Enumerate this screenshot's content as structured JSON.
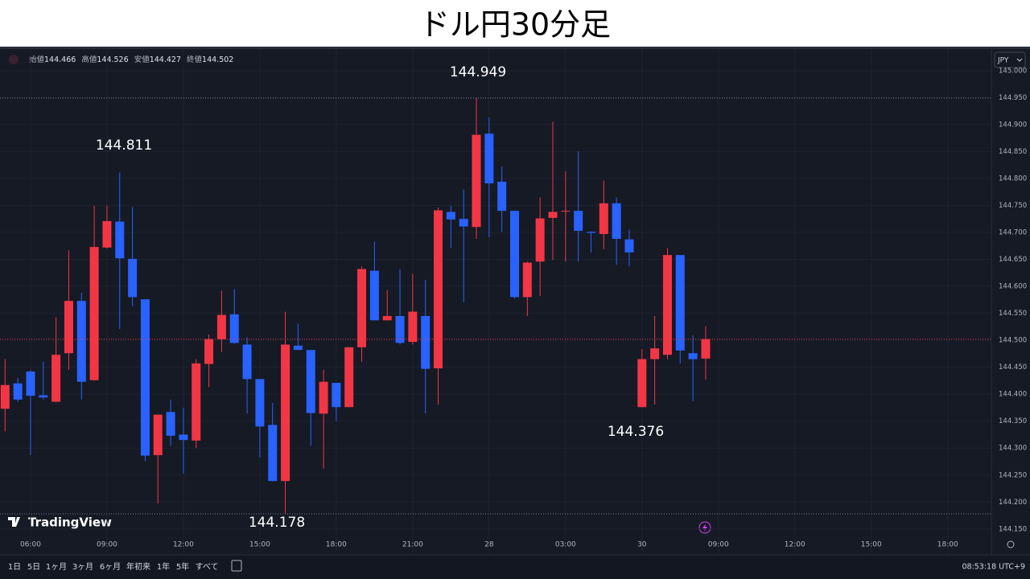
{
  "chart_data": {
    "type": "candlestick",
    "title": "ドル円30分足",
    "header": [
      {
        "label": "始値",
        "value": "144.466"
      },
      {
        "label": "高値",
        "value": "144.526"
      },
      {
        "label": "安値",
        "value": "144.427"
      },
      {
        "label": "終値",
        "value": "144.502"
      }
    ],
    "currency": "JPY",
    "brand": "TradingView",
    "annotations": [
      "144.949",
      "144.811",
      "144.376",
      "144.178"
    ],
    "categories": [
      null,
      null,
      "06:00",
      null,
      null,
      null,
      null,
      null,
      "09:00",
      null,
      null,
      null,
      null,
      null,
      "12:00",
      null,
      null,
      null,
      null,
      null,
      "15:00",
      null,
      null,
      null,
      null,
      null,
      "18:00",
      null,
      null,
      null,
      null,
      null,
      "21:00",
      null,
      null,
      null,
      null,
      null,
      "28",
      null,
      null,
      null,
      null,
      null,
      "03:00",
      null,
      null,
      null,
      null,
      null,
      "30",
      null,
      null,
      null,
      null,
      null,
      "09:00",
      null,
      null,
      null,
      null,
      null,
      "12:00",
      null,
      null,
      null,
      null,
      null,
      "15:00",
      null,
      null,
      null,
      null,
      null,
      "18:00",
      null,
      null,
      null
    ],
    "open": [
      144.373,
      144.42,
      144.442,
      144.398,
      144.386,
      144.476,
      144.573,
      144.426,
      144.672,
      144.72,
      144.651,
      144.576,
      144.287,
      144.367,
      144.325,
      144.314,
      144.456,
      144.502,
      144.548,
      144.492,
      144.428,
      144.343,
      144.239,
      144.49,
      144.482,
      144.364,
      144.421,
      144.376,
      144.487,
      144.629,
      144.537,
      144.545,
      144.497,
      144.545,
      144.448,
      144.738,
      144.725,
      144.71,
      144.883,
      144.794,
      144.74,
      144.58,
      144.646,
      144.727,
      144.739,
      144.74,
      144.701,
      144.697,
      144.754,
      144.687,
      144.376,
      144.465,
      144.473,
      144.658,
      144.476,
      144.466,
      null,
      null,
      null,
      null,
      null,
      null,
      null,
      null,
      null,
      null,
      null,
      null,
      null,
      null,
      null,
      null,
      null,
      null,
      null,
      null,
      null,
      null
    ],
    "high": [
      144.465,
      144.43,
      144.445,
      144.46,
      144.543,
      144.667,
      144.588,
      144.749,
      144.75,
      144.811,
      144.747,
      144.576,
      144.362,
      144.39,
      144.375,
      144.465,
      144.511,
      144.592,
      144.595,
      144.506,
      144.428,
      144.384,
      144.553,
      144.531,
      144.482,
      144.445,
      144.421,
      144.487,
      144.637,
      144.683,
      144.593,
      144.632,
      144.623,
      144.612,
      144.746,
      144.749,
      144.78,
      144.949,
      144.913,
      144.822,
      144.74,
      144.646,
      144.765,
      144.905,
      144.813,
      144.85,
      144.702,
      144.796,
      144.765,
      144.705,
      144.484,
      144.545,
      144.671,
      144.658,
      144.509,
      144.526,
      null,
      null,
      null,
      null,
      null,
      null,
      null,
      null,
      null,
      null,
      null,
      null,
      null,
      null,
      null,
      null,
      null,
      null,
      null,
      null,
      null,
      null
    ],
    "low": [
      144.331,
      144.385,
      144.287,
      144.39,
      144.385,
      144.445,
      144.39,
      144.425,
      144.67,
      144.521,
      144.563,
      144.276,
      144.197,
      144.304,
      144.253,
      144.3,
      144.413,
      144.478,
      144.494,
      144.364,
      144.283,
      144.238,
      144.178,
      144.482,
      144.304,
      144.262,
      144.35,
      144.376,
      144.46,
      144.537,
      144.537,
      144.492,
      144.492,
      144.364,
      144.381,
      144.671,
      144.57,
      144.688,
      144.691,
      144.701,
      144.577,
      144.545,
      144.582,
      144.649,
      144.646,
      144.646,
      144.663,
      144.669,
      144.64,
      144.637,
      144.376,
      144.381,
      144.465,
      144.457,
      144.387,
      144.427,
      null,
      null,
      null,
      null,
      null,
      null,
      null,
      null,
      null,
      null,
      null,
      null,
      null,
      null,
      null,
      null,
      null,
      null,
      null,
      null,
      null,
      null
    ],
    "close": [
      144.417,
      144.39,
      144.397,
      144.394,
      144.473,
      144.573,
      144.423,
      144.673,
      144.721,
      144.652,
      144.58,
      144.286,
      144.362,
      144.323,
      144.315,
      144.457,
      144.502,
      144.547,
      144.495,
      144.428,
      144.34,
      144.239,
      144.492,
      144.482,
      144.365,
      144.423,
      144.376,
      144.487,
      144.632,
      144.537,
      144.545,
      144.495,
      144.553,
      144.447,
      144.741,
      144.724,
      144.711,
      144.881,
      144.791,
      144.74,
      144.58,
      144.644,
      144.726,
      144.738,
      144.74,
      144.703,
      144.699,
      144.754,
      144.688,
      144.663,
      144.465,
      144.485,
      144.658,
      144.481,
      144.465,
      144.502,
      null,
      null,
      null,
      null,
      null,
      null,
      null,
      null,
      null,
      null,
      null,
      null,
      null,
      null,
      null,
      null,
      null,
      null,
      null,
      null,
      null,
      null
    ],
    "up_color": "#f23645",
    "down_color": "#2962ff",
    "ylim": [
      144.102,
      145.04
    ],
    "yticks": [
      {
        "value": 144.15,
        "label": "144.150"
      },
      {
        "value": 144.2,
        "label": "144.200"
      },
      {
        "value": 144.25,
        "label": "144.250"
      },
      {
        "value": 144.3,
        "label": "144.300"
      },
      {
        "value": 144.35,
        "label": "144.350"
      },
      {
        "value": 144.4,
        "label": "144.400"
      },
      {
        "value": 144.45,
        "label": "144.450"
      },
      {
        "value": 144.5,
        "label": "144.500"
      },
      {
        "value": 144.55,
        "label": "144.550"
      },
      {
        "value": 144.6,
        "label": "144.600"
      },
      {
        "value": 144.65,
        "label": "144.650"
      },
      {
        "value": 144.7,
        "label": "144.700"
      },
      {
        "value": 144.75,
        "label": "144.750"
      },
      {
        "value": 144.8,
        "label": "144.800"
      },
      {
        "value": 144.85,
        "label": "144.850"
      },
      {
        "value": 144.9,
        "label": "144.900"
      },
      {
        "value": 144.95,
        "label": "144.950"
      },
      {
        "value": 145.0,
        "label": "145.000"
      }
    ],
    "grid": true,
    "ranges": [
      "1日",
      "5日",
      "1ヶ月",
      "3ヶ月",
      "6ヶ月",
      "年初来",
      "1年",
      "5年",
      "すべて"
    ],
    "clock": "08:53:18 UTC+9"
  }
}
